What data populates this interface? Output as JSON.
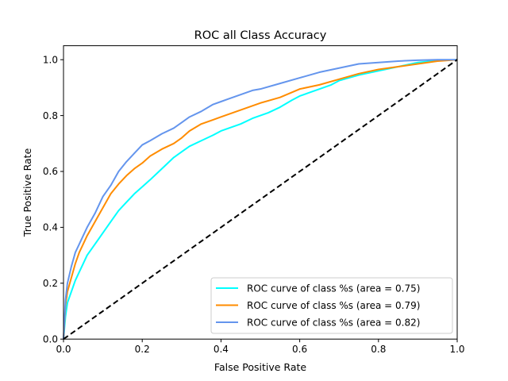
{
  "chart_data": {
    "type": "line",
    "title": "ROC all Class Accuracy",
    "xlabel": "False Positive Rate",
    "ylabel": "True Positive Rate",
    "xlim": [
      0,
      1
    ],
    "ylim": [
      0,
      1.05
    ],
    "xticks": [
      "0.0",
      "0.2",
      "0.4",
      "0.6",
      "0.8",
      "1.0"
    ],
    "yticks": [
      "0.0",
      "0.2",
      "0.4",
      "0.6",
      "0.8",
      "1.0"
    ],
    "grid": false,
    "legend_position": "lower-right",
    "series": [
      {
        "name": "ROC curve of class %s (area = 0.75)",
        "color": "#00ffff",
        "x": [
          0,
          0.005,
          0.01,
          0.02,
          0.03,
          0.04,
          0.05,
          0.06,
          0.08,
          0.1,
          0.12,
          0.14,
          0.16,
          0.18,
          0.2,
          0.22,
          0.25,
          0.28,
          0.3,
          0.32,
          0.35,
          0.38,
          0.4,
          0.42,
          0.45,
          0.48,
          0.5,
          0.52,
          0.55,
          0.58,
          0.6,
          0.62,
          0.65,
          0.68,
          0.7,
          0.75,
          0.8,
          0.85,
          0.9,
          0.95,
          1.0
        ],
        "y": [
          0,
          0.08,
          0.13,
          0.17,
          0.21,
          0.24,
          0.27,
          0.3,
          0.34,
          0.38,
          0.42,
          0.46,
          0.49,
          0.52,
          0.545,
          0.57,
          0.61,
          0.65,
          0.67,
          0.69,
          0.71,
          0.73,
          0.745,
          0.755,
          0.77,
          0.79,
          0.8,
          0.81,
          0.83,
          0.855,
          0.87,
          0.88,
          0.895,
          0.91,
          0.925,
          0.945,
          0.96,
          0.975,
          0.99,
          0.997,
          1.0
        ]
      },
      {
        "name": "ROC curve of class %s (area = 0.79)",
        "color": "#ff8c00",
        "x": [
          0,
          0.005,
          0.01,
          0.02,
          0.03,
          0.04,
          0.05,
          0.06,
          0.08,
          0.1,
          0.12,
          0.14,
          0.16,
          0.18,
          0.2,
          0.22,
          0.25,
          0.28,
          0.3,
          0.32,
          0.35,
          0.38,
          0.4,
          0.42,
          0.45,
          0.48,
          0.5,
          0.55,
          0.6,
          0.65,
          0.7,
          0.75,
          0.8,
          0.85,
          0.9,
          0.95,
          1.0
        ],
        "y": [
          0,
          0.12,
          0.17,
          0.22,
          0.27,
          0.31,
          0.34,
          0.37,
          0.42,
          0.47,
          0.52,
          0.555,
          0.585,
          0.61,
          0.63,
          0.655,
          0.68,
          0.7,
          0.72,
          0.745,
          0.77,
          0.785,
          0.795,
          0.805,
          0.82,
          0.835,
          0.845,
          0.865,
          0.895,
          0.91,
          0.93,
          0.95,
          0.965,
          0.975,
          0.985,
          0.995,
          1.0
        ]
      },
      {
        "name": "ROC curve of class %s (area = 0.82)",
        "color": "#6495ed",
        "x": [
          0,
          0.005,
          0.01,
          0.02,
          0.03,
          0.04,
          0.05,
          0.06,
          0.08,
          0.1,
          0.12,
          0.14,
          0.16,
          0.18,
          0.2,
          0.22,
          0.25,
          0.28,
          0.3,
          0.32,
          0.35,
          0.38,
          0.4,
          0.42,
          0.45,
          0.48,
          0.5,
          0.55,
          0.6,
          0.65,
          0.7,
          0.75,
          0.8,
          0.85,
          0.9,
          0.95,
          1.0
        ],
        "y": [
          0,
          0.14,
          0.2,
          0.26,
          0.31,
          0.34,
          0.37,
          0.4,
          0.45,
          0.51,
          0.55,
          0.6,
          0.635,
          0.665,
          0.695,
          0.71,
          0.735,
          0.755,
          0.775,
          0.795,
          0.815,
          0.84,
          0.85,
          0.86,
          0.875,
          0.89,
          0.895,
          0.915,
          0.935,
          0.955,
          0.97,
          0.985,
          0.99,
          0.995,
          0.998,
          1.0,
          1.0
        ]
      }
    ],
    "reference_line": {
      "x": [
        0,
        1
      ],
      "y": [
        0,
        1
      ],
      "color": "#000000",
      "style": "dashed"
    }
  }
}
